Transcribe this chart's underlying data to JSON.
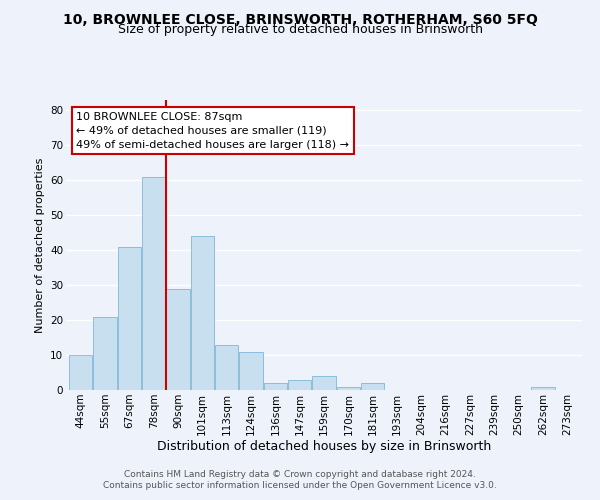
{
  "title": "10, BROWNLEE CLOSE, BRINSWORTH, ROTHERHAM, S60 5FQ",
  "subtitle": "Size of property relative to detached houses in Brinsworth",
  "xlabel": "Distribution of detached houses by size in Brinsworth",
  "ylabel": "Number of detached properties",
  "bar_labels": [
    "44sqm",
    "55sqm",
    "67sqm",
    "78sqm",
    "90sqm",
    "101sqm",
    "113sqm",
    "124sqm",
    "136sqm",
    "147sqm",
    "159sqm",
    "170sqm",
    "181sqm",
    "193sqm",
    "204sqm",
    "216sqm",
    "227sqm",
    "239sqm",
    "250sqm",
    "262sqm",
    "273sqm"
  ],
  "bar_values": [
    10,
    21,
    41,
    61,
    29,
    44,
    13,
    11,
    2,
    3,
    4,
    1,
    2,
    0,
    0,
    0,
    0,
    0,
    0,
    1,
    0
  ],
  "bar_color": "#c8dff0",
  "bar_edge_color": "#7fb8d8",
  "vline_x_index": 4,
  "vline_color": "#cc0000",
  "annotation_title": "10 BROWNLEE CLOSE: 87sqm",
  "annotation_line1": "← 49% of detached houses are smaller (119)",
  "annotation_line2": "49% of semi-detached houses are larger (118) →",
  "annotation_box_color": "#ffffff",
  "annotation_box_edge": "#cc0000",
  "ylim": [
    0,
    83
  ],
  "yticks": [
    0,
    10,
    20,
    30,
    40,
    50,
    60,
    70,
    80
  ],
  "footer_line1": "Contains HM Land Registry data © Crown copyright and database right 2024.",
  "footer_line2": "Contains public sector information licensed under the Open Government Licence v3.0.",
  "bg_color": "#eef2fa",
  "grid_color": "#ffffff",
  "title_fontsize": 10,
  "subtitle_fontsize": 9,
  "xlabel_fontsize": 9,
  "ylabel_fontsize": 8,
  "tick_fontsize": 7.5,
  "annotation_fontsize": 8,
  "footer_fontsize": 6.5
}
